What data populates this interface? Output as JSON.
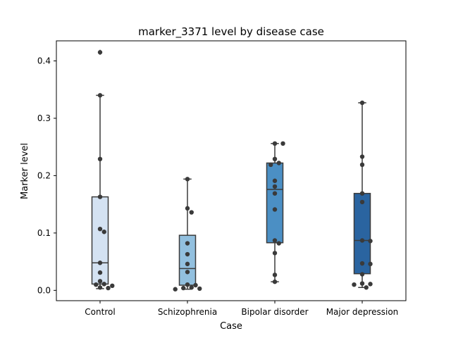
{
  "chart_data": {
    "type": "box",
    "title": "marker_3371 level by disease case",
    "xlabel": "Case",
    "ylabel": "Marker level",
    "ylim": [
      -0.018,
      0.435
    ],
    "yticks": [
      0.0,
      0.1,
      0.2,
      0.3,
      0.4
    ],
    "ytick_labels": [
      "0.0",
      "0.1",
      "0.2",
      "0.3",
      "0.4"
    ],
    "grid": false,
    "categories": [
      "Control",
      "Schizophrenia",
      "Bipolar disorder",
      "Major depression"
    ],
    "colors": [
      "#d4e2f2",
      "#92c0df",
      "#4b8fc4",
      "#2a64a0"
    ],
    "boxes": [
      {
        "category": "Control",
        "whisker_low": 0.003,
        "q1": 0.011,
        "median": 0.048,
        "q3": 0.163,
        "whisker_high": 0.34,
        "outliers": [
          0.415
        ]
      },
      {
        "category": "Schizophrenia",
        "whisker_low": 0.002,
        "q1": 0.009,
        "median": 0.038,
        "q3": 0.096,
        "whisker_high": 0.194,
        "outliers": []
      },
      {
        "category": "Bipolar disorder",
        "whisker_low": 0.015,
        "q1": 0.083,
        "median": 0.176,
        "q3": 0.222,
        "whisker_high": 0.256,
        "outliers": []
      },
      {
        "category": "Major depression",
        "whisker_low": 0.005,
        "q1": 0.029,
        "median": 0.087,
        "q3": 0.169,
        "whisker_high": 0.327,
        "outliers": []
      }
    ],
    "points": [
      [
        0.415,
        0.34,
        0.229,
        0.163,
        0.107,
        0.102,
        0.048,
        0.031,
        0.016,
        0.011,
        0.01,
        0.008,
        0.005,
        0.004
      ],
      [
        0.194,
        0.143,
        0.136,
        0.082,
        0.063,
        0.046,
        0.032,
        0.01,
        0.009,
        0.005,
        0.004,
        0.003,
        0.002
      ],
      [
        0.256,
        0.256,
        0.229,
        0.222,
        0.219,
        0.191,
        0.181,
        0.169,
        0.141,
        0.087,
        0.082,
        0.065,
        0.027,
        0.015
      ],
      [
        0.327,
        0.233,
        0.219,
        0.169,
        0.154,
        0.087,
        0.086,
        0.047,
        0.046,
        0.028,
        0.012,
        0.011,
        0.01,
        0.005
      ]
    ]
  }
}
